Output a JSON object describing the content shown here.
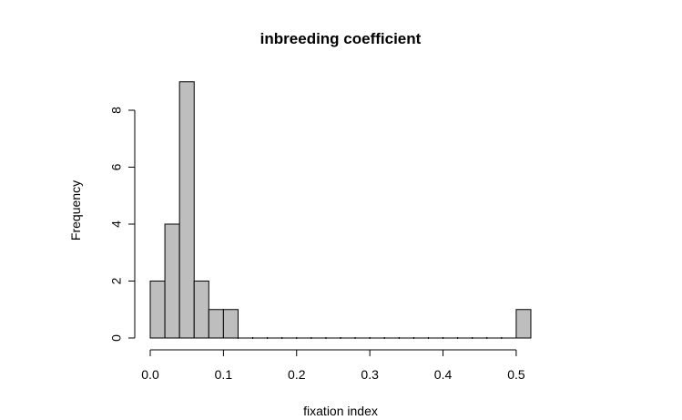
{
  "chart_data": {
    "type": "bar",
    "subtype": "histogram",
    "title": "inbreeding coefficient",
    "xlabel": "fixation index",
    "ylabel": "Frequency",
    "bin_width": 0.02,
    "bins": [
      {
        "start": 0.0,
        "end": 0.02,
        "count": 2
      },
      {
        "start": 0.02,
        "end": 0.04,
        "count": 4
      },
      {
        "start": 0.04,
        "end": 0.06,
        "count": 9
      },
      {
        "start": 0.06,
        "end": 0.08,
        "count": 2
      },
      {
        "start": 0.08,
        "end": 0.1,
        "count": 1
      },
      {
        "start": 0.1,
        "end": 0.12,
        "count": 1
      },
      {
        "start": 0.12,
        "end": 0.14,
        "count": 0
      },
      {
        "start": 0.14,
        "end": 0.16,
        "count": 0
      },
      {
        "start": 0.16,
        "end": 0.18,
        "count": 0
      },
      {
        "start": 0.18,
        "end": 0.2,
        "count": 0
      },
      {
        "start": 0.2,
        "end": 0.22,
        "count": 0
      },
      {
        "start": 0.22,
        "end": 0.24,
        "count": 0
      },
      {
        "start": 0.24,
        "end": 0.26,
        "count": 0
      },
      {
        "start": 0.26,
        "end": 0.28,
        "count": 0
      },
      {
        "start": 0.28,
        "end": 0.3,
        "count": 0
      },
      {
        "start": 0.3,
        "end": 0.32,
        "count": 0
      },
      {
        "start": 0.32,
        "end": 0.34,
        "count": 0
      },
      {
        "start": 0.34,
        "end": 0.36,
        "count": 0
      },
      {
        "start": 0.36,
        "end": 0.38,
        "count": 0
      },
      {
        "start": 0.38,
        "end": 0.4,
        "count": 0
      },
      {
        "start": 0.4,
        "end": 0.42,
        "count": 0
      },
      {
        "start": 0.42,
        "end": 0.44,
        "count": 0
      },
      {
        "start": 0.44,
        "end": 0.46,
        "count": 0
      },
      {
        "start": 0.46,
        "end": 0.48,
        "count": 0
      },
      {
        "start": 0.48,
        "end": 0.5,
        "count": 0
      },
      {
        "start": 0.5,
        "end": 0.52,
        "count": 1
      }
    ],
    "xlim": [
      0.0,
      0.52
    ],
    "ylim": [
      0,
      9
    ],
    "x_ticks": [
      0.0,
      0.1,
      0.2,
      0.3,
      0.4,
      0.5
    ],
    "x_tick_labels": [
      "0.0",
      "0.1",
      "0.2",
      "0.3",
      "0.4",
      "0.5"
    ],
    "y_ticks": [
      0,
      2,
      4,
      6,
      8
    ],
    "y_tick_labels": [
      "0",
      "2",
      "4",
      "6",
      "8"
    ],
    "grid": false,
    "legend": "none",
    "colors": {
      "bar_fill": "#bebebe",
      "bar_edge": "#000000"
    }
  }
}
